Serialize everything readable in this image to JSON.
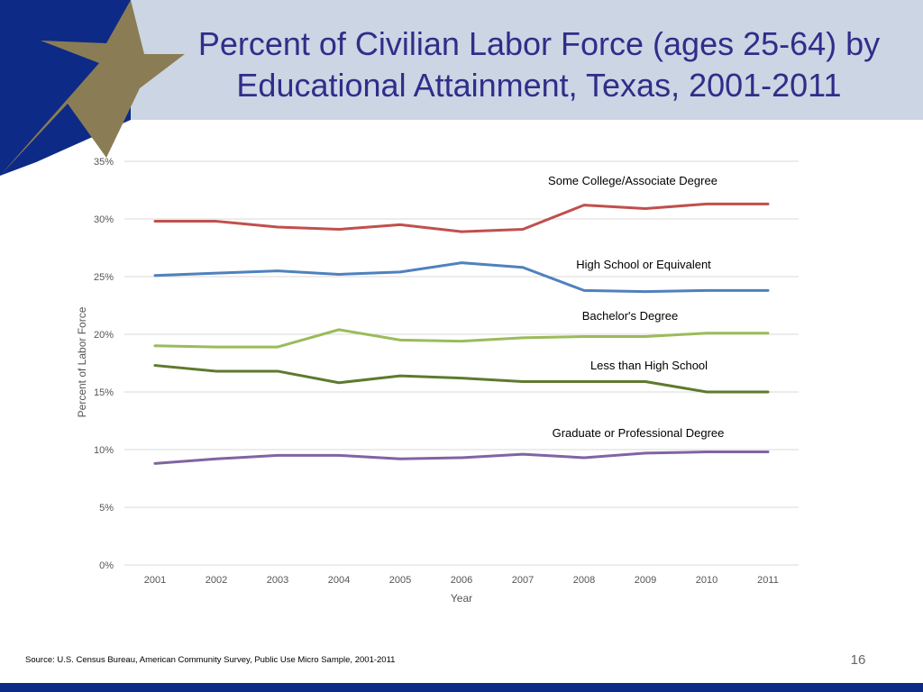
{
  "slide": {
    "title": "Percent of Civilian Labor Force (ages 25-64) by Educational Attainment, Texas, 2001-2011",
    "source": "Source: U.S. Census Bureau, American Community Survey, Public Use Micro Sample, 2001-2011",
    "page_number": "16",
    "colors": {
      "header_band": "#ccd5e3",
      "logo_blue": "#0d2a87",
      "star_gold": "#8a7d55",
      "title": "#2e2e8a",
      "bottom_bar": "#0d2a87"
    }
  },
  "chart_data": {
    "type": "line",
    "title": "",
    "xlabel": "Year",
    "ylabel": "Percent of Labor Force",
    "x": [
      "2001",
      "2002",
      "2003",
      "2004",
      "2005",
      "2006",
      "2007",
      "2008",
      "2009",
      "2010",
      "2011"
    ],
    "ylim": [
      0,
      35
    ],
    "yticks": [
      0,
      5,
      10,
      15,
      20,
      25,
      30,
      35
    ],
    "ytick_labels": [
      "0%",
      "5%",
      "10%",
      "15%",
      "20%",
      "25%",
      "30%",
      "35%"
    ],
    "grid": "horizontal",
    "legend": "inline labels",
    "series": [
      {
        "name": "Some College/Associate Degree",
        "color": "#c0504d",
        "values": [
          29.8,
          29.8,
          29.3,
          29.1,
          29.5,
          28.9,
          29.1,
          31.2,
          30.9,
          31.3,
          31.3
        ]
      },
      {
        "name": "High School or Equivalent",
        "color": "#4f81bd",
        "values": [
          25.1,
          25.3,
          25.5,
          25.2,
          25.4,
          26.2,
          25.8,
          23.8,
          23.7,
          23.8,
          23.8
        ]
      },
      {
        "name": "Bachelor's Degree",
        "color": "#9bbb59",
        "values": [
          19.0,
          18.9,
          18.9,
          20.4,
          19.5,
          19.4,
          19.7,
          19.8,
          19.8,
          20.1,
          20.1
        ]
      },
      {
        "name": "Less than High School",
        "color": "#5e7a2e",
        "values": [
          17.3,
          16.8,
          16.8,
          15.8,
          16.4,
          16.2,
          15.9,
          15.9,
          15.9,
          15.0,
          15.0
        ]
      },
      {
        "name": "Graduate or Professional Degree",
        "color": "#8064a2",
        "values": [
          8.8,
          9.2,
          9.5,
          9.5,
          9.2,
          9.3,
          9.6,
          9.3,
          9.7,
          9.8,
          9.8
        ]
      }
    ]
  }
}
